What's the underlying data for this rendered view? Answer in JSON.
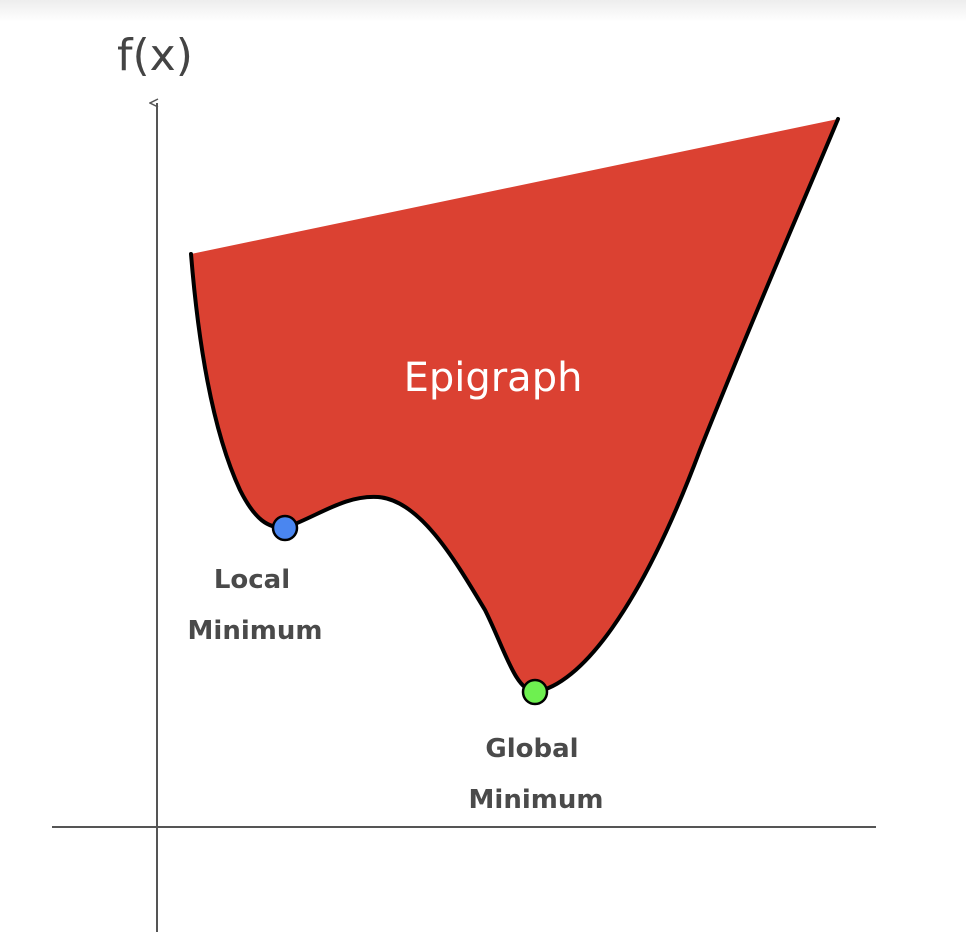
{
  "axes": {
    "y_label": "f(x)"
  },
  "region": {
    "label": "Epigraph",
    "fill_color": "#db4132"
  },
  "points": {
    "local": {
      "line1": "Local",
      "line2": "Minimum",
      "color": "#4a86f0"
    },
    "global": {
      "line1": "Global",
      "line2": "Minimum",
      "color": "#6ef050"
    }
  },
  "colors": {
    "curve": "#000000",
    "axis": "#555555"
  }
}
